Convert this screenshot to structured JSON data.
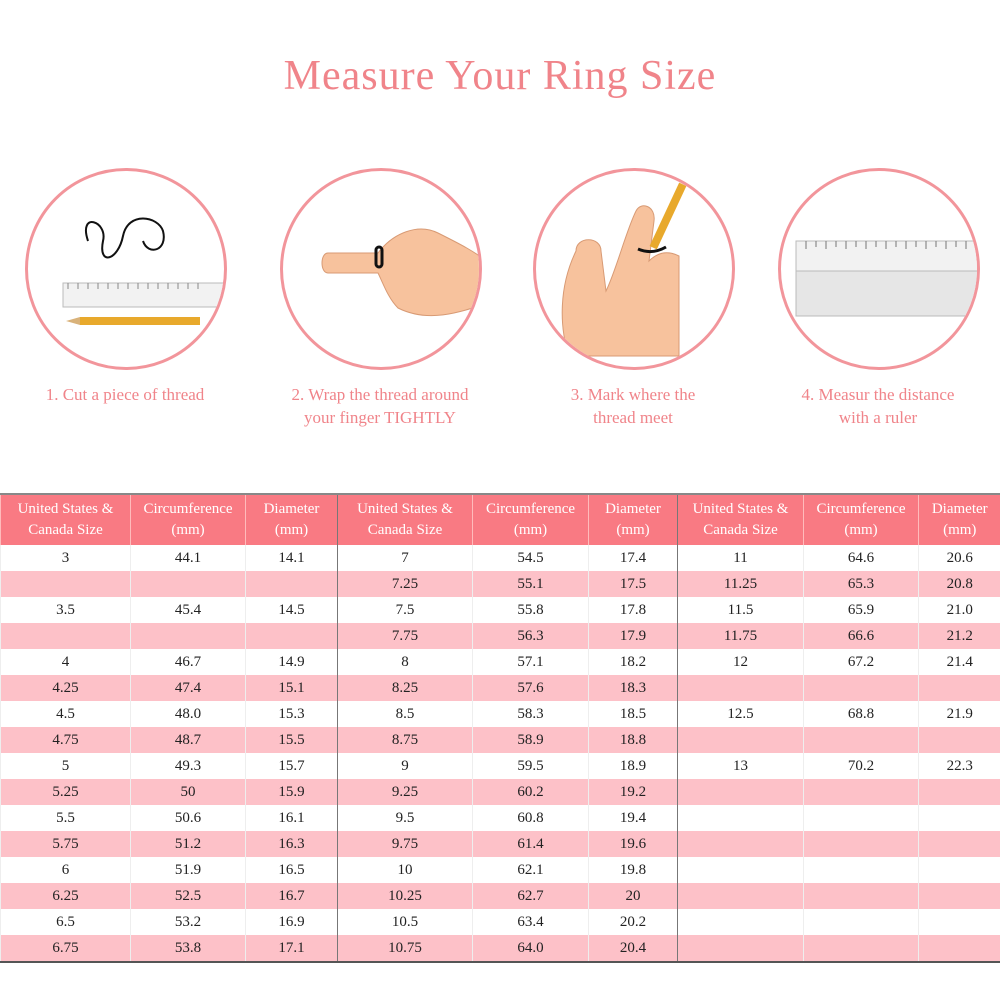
{
  "title": "Measure Your Ring Size",
  "steps": [
    {
      "caption_line1": "1. Cut a piece of thread",
      "caption_line2": "",
      "icon": "thread-ruler-pencil"
    },
    {
      "caption_line1": "2. Wrap the thread around",
      "caption_line2": "your finger TIGHTLY",
      "icon": "hand-wrap-thread"
    },
    {
      "caption_line1": "3. Mark where the",
      "caption_line2": "thread meet",
      "icon": "hand-mark-pencil"
    },
    {
      "caption_line1": "4. Measur the distance",
      "caption_line2": "with a ruler",
      "icon": "ruler"
    }
  ],
  "colors": {
    "accent": "#f0848a",
    "header_bg": "#f97a83",
    "row_alt": "#fdc1c8"
  },
  "table": {
    "headers": [
      [
        "United States &",
        "Canada Size"
      ],
      [
        "Circumference",
        "(mm)"
      ],
      [
        "Diameter",
        "(mm)"
      ],
      [
        "United States &",
        "Canada Size"
      ],
      [
        "Circumference",
        "(mm)"
      ],
      [
        "Diameter",
        "(mm)"
      ],
      [
        "United States &",
        "Canada Size"
      ],
      [
        "Circumference",
        "(mm)"
      ],
      [
        "Diameter",
        "(mm)"
      ]
    ],
    "rows": [
      [
        "3",
        "44.1",
        "14.1",
        "7",
        "54.5",
        "17.4",
        "11",
        "64.6",
        "20.6"
      ],
      [
        "",
        "",
        "",
        "7.25",
        "55.1",
        "17.5",
        "11.25",
        "65.3",
        "20.8"
      ],
      [
        "3.5",
        "45.4",
        "14.5",
        "7.5",
        "55.8",
        "17.8",
        "11.5",
        "65.9",
        "21.0"
      ],
      [
        "",
        "",
        "",
        "7.75",
        "56.3",
        "17.9",
        "11.75",
        "66.6",
        "21.2"
      ],
      [
        "4",
        "46.7",
        "14.9",
        "8",
        "57.1",
        "18.2",
        "12",
        "67.2",
        "21.4"
      ],
      [
        "4.25",
        "47.4",
        "15.1",
        "8.25",
        "57.6",
        "18.3",
        "",
        "",
        ""
      ],
      [
        "4.5",
        "48.0",
        "15.3",
        "8.5",
        "58.3",
        "18.5",
        "12.5",
        "68.8",
        "21.9"
      ],
      [
        "4.75",
        "48.7",
        "15.5",
        "8.75",
        "58.9",
        "18.8",
        "",
        "",
        ""
      ],
      [
        "5",
        "49.3",
        "15.7",
        "9",
        "59.5",
        "18.9",
        "13",
        "70.2",
        "22.3"
      ],
      [
        "5.25",
        "50",
        "15.9",
        "9.25",
        "60.2",
        "19.2",
        "",
        "",
        ""
      ],
      [
        "5.5",
        "50.6",
        "16.1",
        "9.5",
        "60.8",
        "19.4",
        "",
        "",
        ""
      ],
      [
        "5.75",
        "51.2",
        "16.3",
        "9.75",
        "61.4",
        "19.6",
        "",
        "",
        ""
      ],
      [
        "6",
        "51.9",
        "16.5",
        "10",
        "62.1",
        "19.8",
        "",
        "",
        ""
      ],
      [
        "6.25",
        "52.5",
        "16.7",
        "10.25",
        "62.7",
        "20",
        "",
        "",
        ""
      ],
      [
        "6.5",
        "53.2",
        "16.9",
        "10.5",
        "63.4",
        "20.2",
        "",
        "",
        ""
      ],
      [
        "6.75",
        "53.8",
        "17.1",
        "10.75",
        "64.0",
        "20.4",
        "",
        "",
        ""
      ]
    ]
  }
}
